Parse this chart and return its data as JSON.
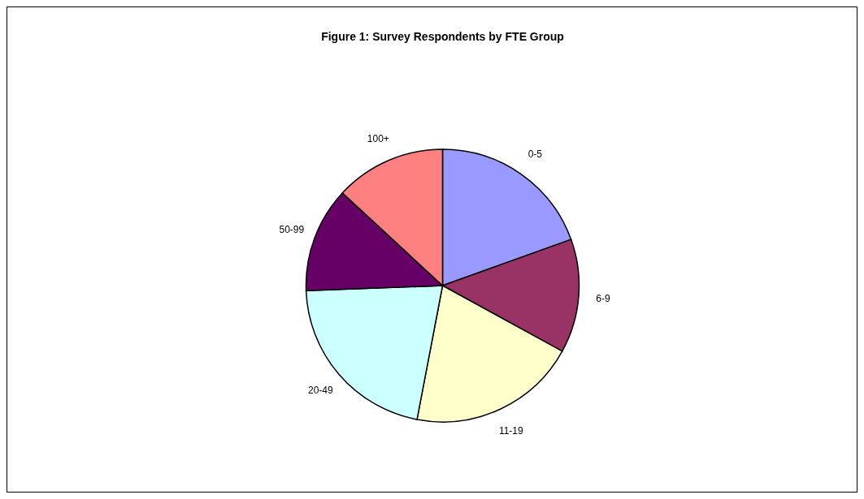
{
  "chart_data": {
    "type": "pie",
    "title": "Figure 1: Survey Respondents by FTE Group",
    "categories": [
      "0-5",
      "6-9",
      "11-19",
      "20-49",
      "50-99",
      "100+"
    ],
    "values": [
      19.5,
      13.5,
      20.0,
      21.4,
      12.5,
      13.1
    ],
    "colors": [
      "#9999ff",
      "#993366",
      "#ffffcc",
      "#ccffff",
      "#660066",
      "#ff8080"
    ]
  }
}
